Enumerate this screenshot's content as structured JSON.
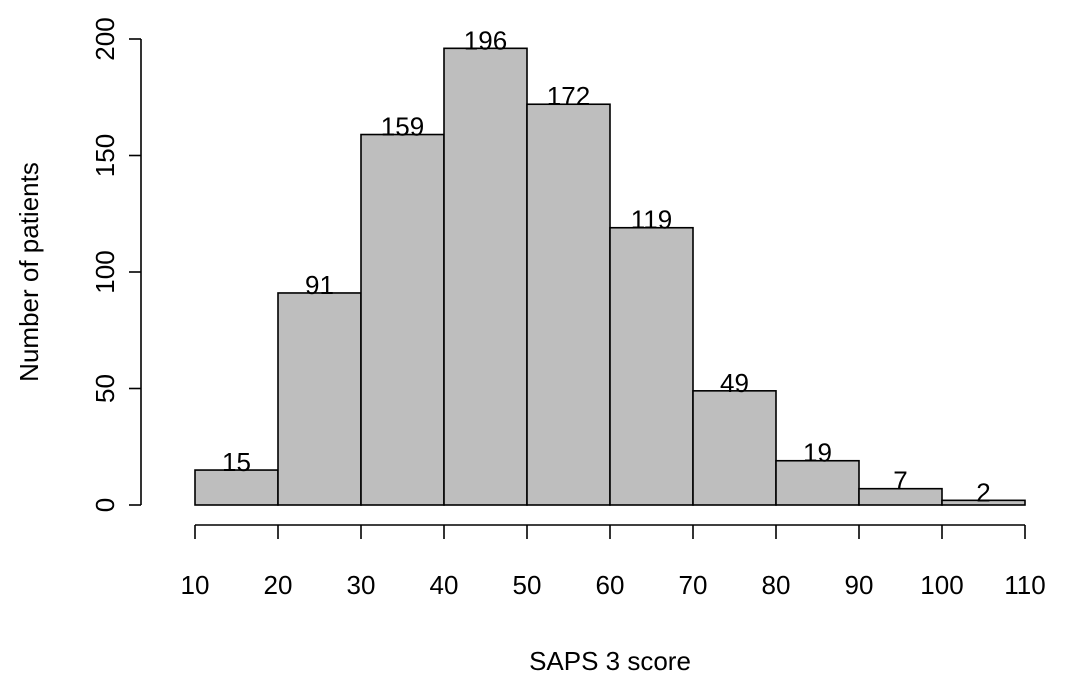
{
  "chart_data": {
    "type": "bar",
    "title": "",
    "xlabel": "SAPS 3 score",
    "ylabel": "Number of patients",
    "bins": [
      [
        10,
        20
      ],
      [
        20,
        30
      ],
      [
        30,
        40
      ],
      [
        40,
        50
      ],
      [
        50,
        60
      ],
      [
        60,
        70
      ],
      [
        70,
        80
      ],
      [
        80,
        90
      ],
      [
        90,
        100
      ],
      [
        100,
        110
      ]
    ],
    "values": [
      15,
      91,
      159,
      196,
      172,
      119,
      49,
      19,
      7,
      2
    ],
    "data_labels": [
      "15",
      "91",
      "159",
      "196",
      "172",
      "119",
      "49",
      "19",
      "7",
      "2"
    ],
    "xlim": [
      10,
      110
    ],
    "ylim": [
      0,
      200
    ],
    "x_ticks": [
      10,
      20,
      30,
      40,
      50,
      60,
      70,
      80,
      90,
      100,
      110
    ],
    "x_tick_labels": [
      "10",
      "20",
      "30",
      "40",
      "50",
      "60",
      "70",
      "80",
      "90",
      "100",
      "110"
    ],
    "y_ticks": [
      0,
      50,
      100,
      150,
      200
    ],
    "y_tick_labels": [
      "0",
      "50",
      "100",
      "150",
      "200"
    ],
    "grid": false,
    "legend": "none",
    "bar_color": "#bebebe",
    "edge_color": "#000000"
  }
}
